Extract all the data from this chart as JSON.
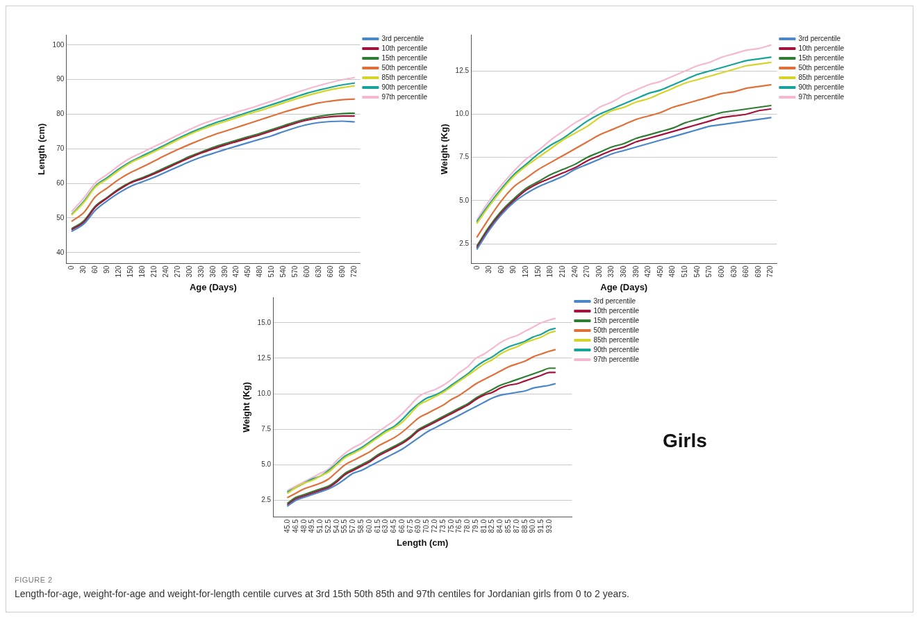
{
  "chart_data": [
    {
      "type": "line",
      "xlabel": "Age (Days)",
      "ylabel": "Length (cm)",
      "categories": [
        "0",
        "30",
        "60",
        "90",
        "120",
        "150",
        "180",
        "210",
        "240",
        "270",
        "300",
        "330",
        "360",
        "390",
        "420",
        "450",
        "480",
        "510",
        "540",
        "570",
        "600",
        "630",
        "660",
        "690",
        "720"
      ],
      "ylim": [
        36.8,
        103
      ],
      "yticks": [
        40,
        50,
        60,
        70,
        80,
        90,
        100
      ],
      "grid": "y",
      "legend": "right",
      "marker": "none",
      "line_style": "solid",
      "series": [
        {
          "name": "3rd percentile",
          "color": "#4a86c8",
          "values": [
            46.2,
            48.3,
            52.3,
            55,
            57.3,
            59.2,
            60.5,
            61.8,
            63.3,
            64.8,
            66.3,
            67.6,
            68.7,
            69.8,
            70.8,
            71.8,
            72.8,
            73.8,
            75,
            76.1,
            77,
            77.6,
            77.9,
            78,
            77.8
          ]
        },
        {
          "name": "10th percentile",
          "color": "#a3123a",
          "values": [
            46.7,
            48.8,
            53.2,
            55.8,
            58.2,
            60.2,
            61.4,
            62.8,
            64.3,
            65.9,
            67.4,
            68.8,
            70,
            71.1,
            72.1,
            73.1,
            74.1,
            75.2,
            76.3,
            77.4,
            78.3,
            78.9,
            79.3,
            79.5,
            79.5
          ]
        },
        {
          "name": "15th percentile",
          "color": "#2e7d32",
          "values": [
            47,
            49.2,
            53.5,
            56,
            58.5,
            60.4,
            61.7,
            63.1,
            64.7,
            66.2,
            67.8,
            69.1,
            70.4,
            71.5,
            72.5,
            73.5,
            74.5,
            75.6,
            76.7,
            77.8,
            78.7,
            79.4,
            79.9,
            80.2,
            80.3
          ]
        },
        {
          "name": "50th percentile",
          "color": "#e0703a",
          "values": [
            49.1,
            51.6,
            56.2,
            58.7,
            61.2,
            63.2,
            64.8,
            66.5,
            68.2,
            69.8,
            71.3,
            72.7,
            74,
            75.1,
            76.2,
            77.3,
            78.4,
            79.5,
            80.6,
            81.6,
            82.5,
            83.3,
            83.8,
            84.2,
            84.4
          ]
        },
        {
          "name": "85th percentile",
          "color": "#d4d42a",
          "values": [
            51,
            54.5,
            59,
            61.3,
            63.8,
            66,
            67.6,
            69.2,
            70.9,
            72.6,
            74.2,
            75.6,
            76.8,
            77.9,
            79,
            80.1,
            81.1,
            82.2,
            83.3,
            84.4,
            85.4,
            86.3,
            87.1,
            87.7,
            88.2
          ]
        },
        {
          "name": "90th percentile",
          "color": "#17a39a",
          "values": [
            51.2,
            54.8,
            59.3,
            61.7,
            64.2,
            66.3,
            68,
            69.6,
            71.3,
            73,
            74.6,
            76,
            77.3,
            78.4,
            79.5,
            80.6,
            81.7,
            82.8,
            83.9,
            85,
            86.1,
            87,
            87.8,
            88.5,
            89
          ]
        },
        {
          "name": "97th percentile",
          "color": "#f4b8d0",
          "values": [
            52,
            55.8,
            60.2,
            62.6,
            65.2,
            67.4,
            69,
            70.7,
            72.3,
            74,
            75.6,
            77.1,
            78.3,
            79.4,
            80.6,
            81.6,
            82.7,
            83.8,
            85,
            86.2,
            87.3,
            88.3,
            89.2,
            90,
            90.6
          ]
        }
      ]
    },
    {
      "type": "line",
      "xlabel": "Age (Days)",
      "ylabel": "Weight (Kg)",
      "categories": [
        "0",
        "30",
        "60",
        "90",
        "120",
        "150",
        "180",
        "210",
        "240",
        "270",
        "300",
        "330",
        "360",
        "390",
        "420",
        "450",
        "480",
        "510",
        "540",
        "570",
        "600",
        "630",
        "660",
        "690",
        "720"
      ],
      "ylim": [
        1.35,
        14.6
      ],
      "yticks": [
        {
          "value": 2.5,
          "label": "2.5"
        },
        {
          "value": 5,
          "label": "5.0"
        },
        {
          "value": 7.5,
          "label": "7.5"
        },
        {
          "value": 10,
          "label": "10.0"
        },
        {
          "value": 12.5,
          "label": "12.5"
        }
      ],
      "grid": "y",
      "legend": "right",
      "marker": "none",
      "line_style": "solid",
      "series": [
        {
          "name": "3rd percentile",
          "color": "#4a86c8",
          "values": [
            2.2,
            3.3,
            4.2,
            4.9,
            5.4,
            5.8,
            6.1,
            6.4,
            6.8,
            7.1,
            7.4,
            7.7,
            7.9,
            8.1,
            8.3,
            8.5,
            8.7,
            8.9,
            9.1,
            9.3,
            9.4,
            9.5,
            9.6,
            9.7,
            9.8
          ]
        },
        {
          "name": "10th percentile",
          "color": "#a3123a",
          "values": [
            2.3,
            3.4,
            4.3,
            5.0,
            5.6,
            6.0,
            6.3,
            6.6,
            6.9,
            7.3,
            7.6,
            7.9,
            8.1,
            8.4,
            8.6,
            8.8,
            9.0,
            9.2,
            9.4,
            9.6,
            9.8,
            9.9,
            10.0,
            10.2,
            10.3
          ]
        },
        {
          "name": "15th percentile",
          "color": "#2e7d32",
          "values": [
            2.4,
            3.5,
            4.4,
            5.1,
            5.7,
            6.1,
            6.5,
            6.8,
            7.1,
            7.5,
            7.8,
            8.1,
            8.3,
            8.6,
            8.8,
            9.0,
            9.2,
            9.5,
            9.7,
            9.9,
            10.1,
            10.2,
            10.3,
            10.4,
            10.5
          ]
        },
        {
          "name": "50th percentile",
          "color": "#e0703a",
          "values": [
            2.9,
            4.0,
            5.0,
            5.8,
            6.3,
            6.8,
            7.2,
            7.6,
            8.0,
            8.4,
            8.8,
            9.1,
            9.4,
            9.7,
            9.9,
            10.1,
            10.4,
            10.6,
            10.8,
            11.0,
            11.2,
            11.3,
            11.5,
            11.6,
            11.7
          ]
        },
        {
          "name": "85th percentile",
          "color": "#d4d42a",
          "values": [
            3.7,
            4.7,
            5.6,
            6.4,
            7.0,
            7.5,
            8.0,
            8.5,
            8.9,
            9.3,
            9.8,
            10.2,
            10.4,
            10.7,
            10.9,
            11.2,
            11.5,
            11.8,
            12.0,
            12.2,
            12.4,
            12.6,
            12.8,
            12.9,
            13.0
          ]
        },
        {
          "name": "90th percentile",
          "color": "#17a39a",
          "values": [
            3.8,
            4.8,
            5.7,
            6.5,
            7.1,
            7.7,
            8.2,
            8.6,
            9.1,
            9.6,
            10.0,
            10.3,
            10.6,
            10.9,
            11.2,
            11.4,
            11.7,
            12.0,
            12.3,
            12.5,
            12.7,
            12.9,
            13.1,
            13.2,
            13.3
          ]
        },
        {
          "name": "97th percentile",
          "color": "#f4b8d0",
          "values": [
            3.9,
            5.0,
            5.9,
            6.7,
            7.4,
            7.9,
            8.5,
            9.0,
            9.5,
            9.9,
            10.4,
            10.7,
            11.1,
            11.4,
            11.7,
            11.9,
            12.2,
            12.5,
            12.8,
            13.0,
            13.3,
            13.5,
            13.7,
            13.8,
            14.0
          ]
        }
      ]
    },
    {
      "type": "line",
      "xlabel": "Length (cm)",
      "ylabel": "Weight (Kg)",
      "x": [
        45,
        46.5,
        48,
        49.5,
        51,
        52.5,
        54,
        55.5,
        57,
        58.5,
        60,
        61.5,
        63,
        64.5,
        66,
        67.5,
        69,
        70.5,
        72,
        73.5,
        75,
        76.5,
        78,
        79.5,
        81,
        82.5,
        84,
        85.5,
        87,
        88.5,
        90,
        91.5,
        93,
        94
      ],
      "xlim": [
        42.3,
        97.1
      ],
      "xticks": [
        {
          "value": 45,
          "label": "45.0"
        },
        {
          "value": 46.5,
          "label": "46.5"
        },
        {
          "value": 48,
          "label": "48.0"
        },
        {
          "value": 49.5,
          "label": "49.5"
        },
        {
          "value": 51,
          "label": "51.0"
        },
        {
          "value": 52.5,
          "label": "52.5"
        },
        {
          "value": 54,
          "label": "54.0"
        },
        {
          "value": 55.5,
          "label": "55.5"
        },
        {
          "value": 57,
          "label": "57.0"
        },
        {
          "value": 58.5,
          "label": "58.5"
        },
        {
          "value": 60,
          "label": "60.0"
        },
        {
          "value": 61.5,
          "label": "61.5"
        },
        {
          "value": 63,
          "label": "63.0"
        },
        {
          "value": 64.5,
          "label": "64.5"
        },
        {
          "value": 66,
          "label": "66.0"
        },
        {
          "value": 67.5,
          "label": "67.5"
        },
        {
          "value": 69,
          "label": "69.0"
        },
        {
          "value": 70.5,
          "label": "70.5"
        },
        {
          "value": 72,
          "label": "72.0"
        },
        {
          "value": 73.5,
          "label": "73.5"
        },
        {
          "value": 75,
          "label": "75.0"
        },
        {
          "value": 76.5,
          "label": "76.5"
        },
        {
          "value": 78,
          "label": "78.0"
        },
        {
          "value": 79.5,
          "label": "79.5"
        },
        {
          "value": 81,
          "label": "81.0"
        },
        {
          "value": 82.5,
          "label": "82.5"
        },
        {
          "value": 84,
          "label": "84.0"
        },
        {
          "value": 85.5,
          "label": "85.5"
        },
        {
          "value": 87,
          "label": "87.0"
        },
        {
          "value": 88.5,
          "label": "88.5"
        },
        {
          "value": 90,
          "label": "90.0"
        },
        {
          "value": 91.5,
          "label": "91.5"
        },
        {
          "value": 93,
          "label": "93.0"
        }
      ],
      "ylim": [
        1.3,
        16.8
      ],
      "yticks": [
        {
          "value": 2.5,
          "label": "2.5"
        },
        {
          "value": 5,
          "label": "5.0"
        },
        {
          "value": 7.5,
          "label": "7.5"
        },
        {
          "value": 10,
          "label": "10.0"
        },
        {
          "value": 12.5,
          "label": "12.5"
        },
        {
          "value": 15,
          "label": "15.0"
        }
      ],
      "grid": "y",
      "legend": "right",
      "marker": "none",
      "line_style": "solid",
      "annotations": [
        "Girls",
        "FIGURE 2",
        "Length-for-age, weight-for-age and weight-for-length centile curves at 3rd 15th 50th 85th and 97th centiles for Jordanian girls from 0 to 2 years."
      ],
      "series": [
        {
          "name": "3rd percentile",
          "color": "#4a86c8",
          "values": [
            2.1,
            2.5,
            2.7,
            2.9,
            3.1,
            3.3,
            3.6,
            4.0,
            4.4,
            4.6,
            4.9,
            5.2,
            5.5,
            5.8,
            6.1,
            6.5,
            6.9,
            7.3,
            7.6,
            7.9,
            8.2,
            8.5,
            8.8,
            9.1,
            9.4,
            9.7,
            9.9,
            10.0,
            10.1,
            10.2,
            10.4,
            10.5,
            10.6,
            10.7
          ]
        },
        {
          "name": "10th percentile",
          "color": "#a3123a",
          "values": [
            2.2,
            2.6,
            2.8,
            3.0,
            3.2,
            3.4,
            3.8,
            4.3,
            4.6,
            4.9,
            5.2,
            5.6,
            5.9,
            6.2,
            6.5,
            6.9,
            7.4,
            7.7,
            8.0,
            8.3,
            8.6,
            8.9,
            9.2,
            9.6,
            9.9,
            10.1,
            10.4,
            10.6,
            10.7,
            10.9,
            11.1,
            11.3,
            11.5,
            11.5
          ]
        },
        {
          "name": "15th percentile",
          "color": "#2e7d32",
          "values": [
            2.3,
            2.7,
            2.9,
            3.1,
            3.3,
            3.5,
            3.9,
            4.4,
            4.7,
            5.0,
            5.3,
            5.7,
            6.0,
            6.3,
            6.6,
            7.0,
            7.5,
            7.8,
            8.1,
            8.4,
            8.7,
            9.0,
            9.3,
            9.7,
            10.0,
            10.3,
            10.6,
            10.8,
            11.0,
            11.2,
            11.4,
            11.6,
            11.8,
            11.8
          ]
        },
        {
          "name": "50th percentile",
          "color": "#e0703a",
          "values": [
            2.7,
            3.0,
            3.3,
            3.5,
            3.7,
            4.0,
            4.5,
            5.0,
            5.3,
            5.6,
            5.9,
            6.3,
            6.6,
            6.9,
            7.3,
            7.8,
            8.3,
            8.6,
            8.9,
            9.2,
            9.6,
            9.9,
            10.3,
            10.7,
            11.0,
            11.3,
            11.6,
            11.9,
            12.1,
            12.3,
            12.6,
            12.8,
            13.0,
            13.1
          ]
        },
        {
          "name": "85th percentile",
          "color": "#d4d42a",
          "values": [
            3.0,
            3.4,
            3.7,
            3.9,
            4.2,
            4.5,
            5.0,
            5.5,
            5.8,
            6.1,
            6.5,
            6.9,
            7.3,
            7.6,
            8.0,
            8.6,
            9.2,
            9.5,
            9.8,
            10.1,
            10.5,
            10.9,
            11.3,
            11.7,
            12.1,
            12.4,
            12.8,
            13.1,
            13.3,
            13.6,
            13.8,
            14.0,
            14.3,
            14.4
          ]
        },
        {
          "name": "90th percentile",
          "color": "#17a39a",
          "values": [
            3.1,
            3.4,
            3.7,
            4.0,
            4.2,
            4.6,
            5.1,
            5.6,
            5.9,
            6.2,
            6.6,
            7.0,
            7.4,
            7.7,
            8.2,
            8.8,
            9.3,
            9.7,
            9.9,
            10.2,
            10.6,
            11.0,
            11.4,
            11.9,
            12.3,
            12.6,
            13.0,
            13.3,
            13.5,
            13.7,
            14.0,
            14.2,
            14.5,
            14.6
          ]
        },
        {
          "name": "97th percentile",
          "color": "#f4b8d0",
          "values": [
            3.2,
            3.5,
            3.8,
            4.1,
            4.4,
            4.7,
            5.3,
            5.8,
            6.2,
            6.5,
            6.9,
            7.3,
            7.7,
            8.1,
            8.6,
            9.2,
            9.8,
            10.1,
            10.3,
            10.6,
            11.0,
            11.5,
            11.9,
            12.5,
            12.8,
            13.2,
            13.6,
            13.9,
            14.1,
            14.4,
            14.7,
            15.0,
            15.2,
            15.3
          ]
        }
      ]
    }
  ]
}
